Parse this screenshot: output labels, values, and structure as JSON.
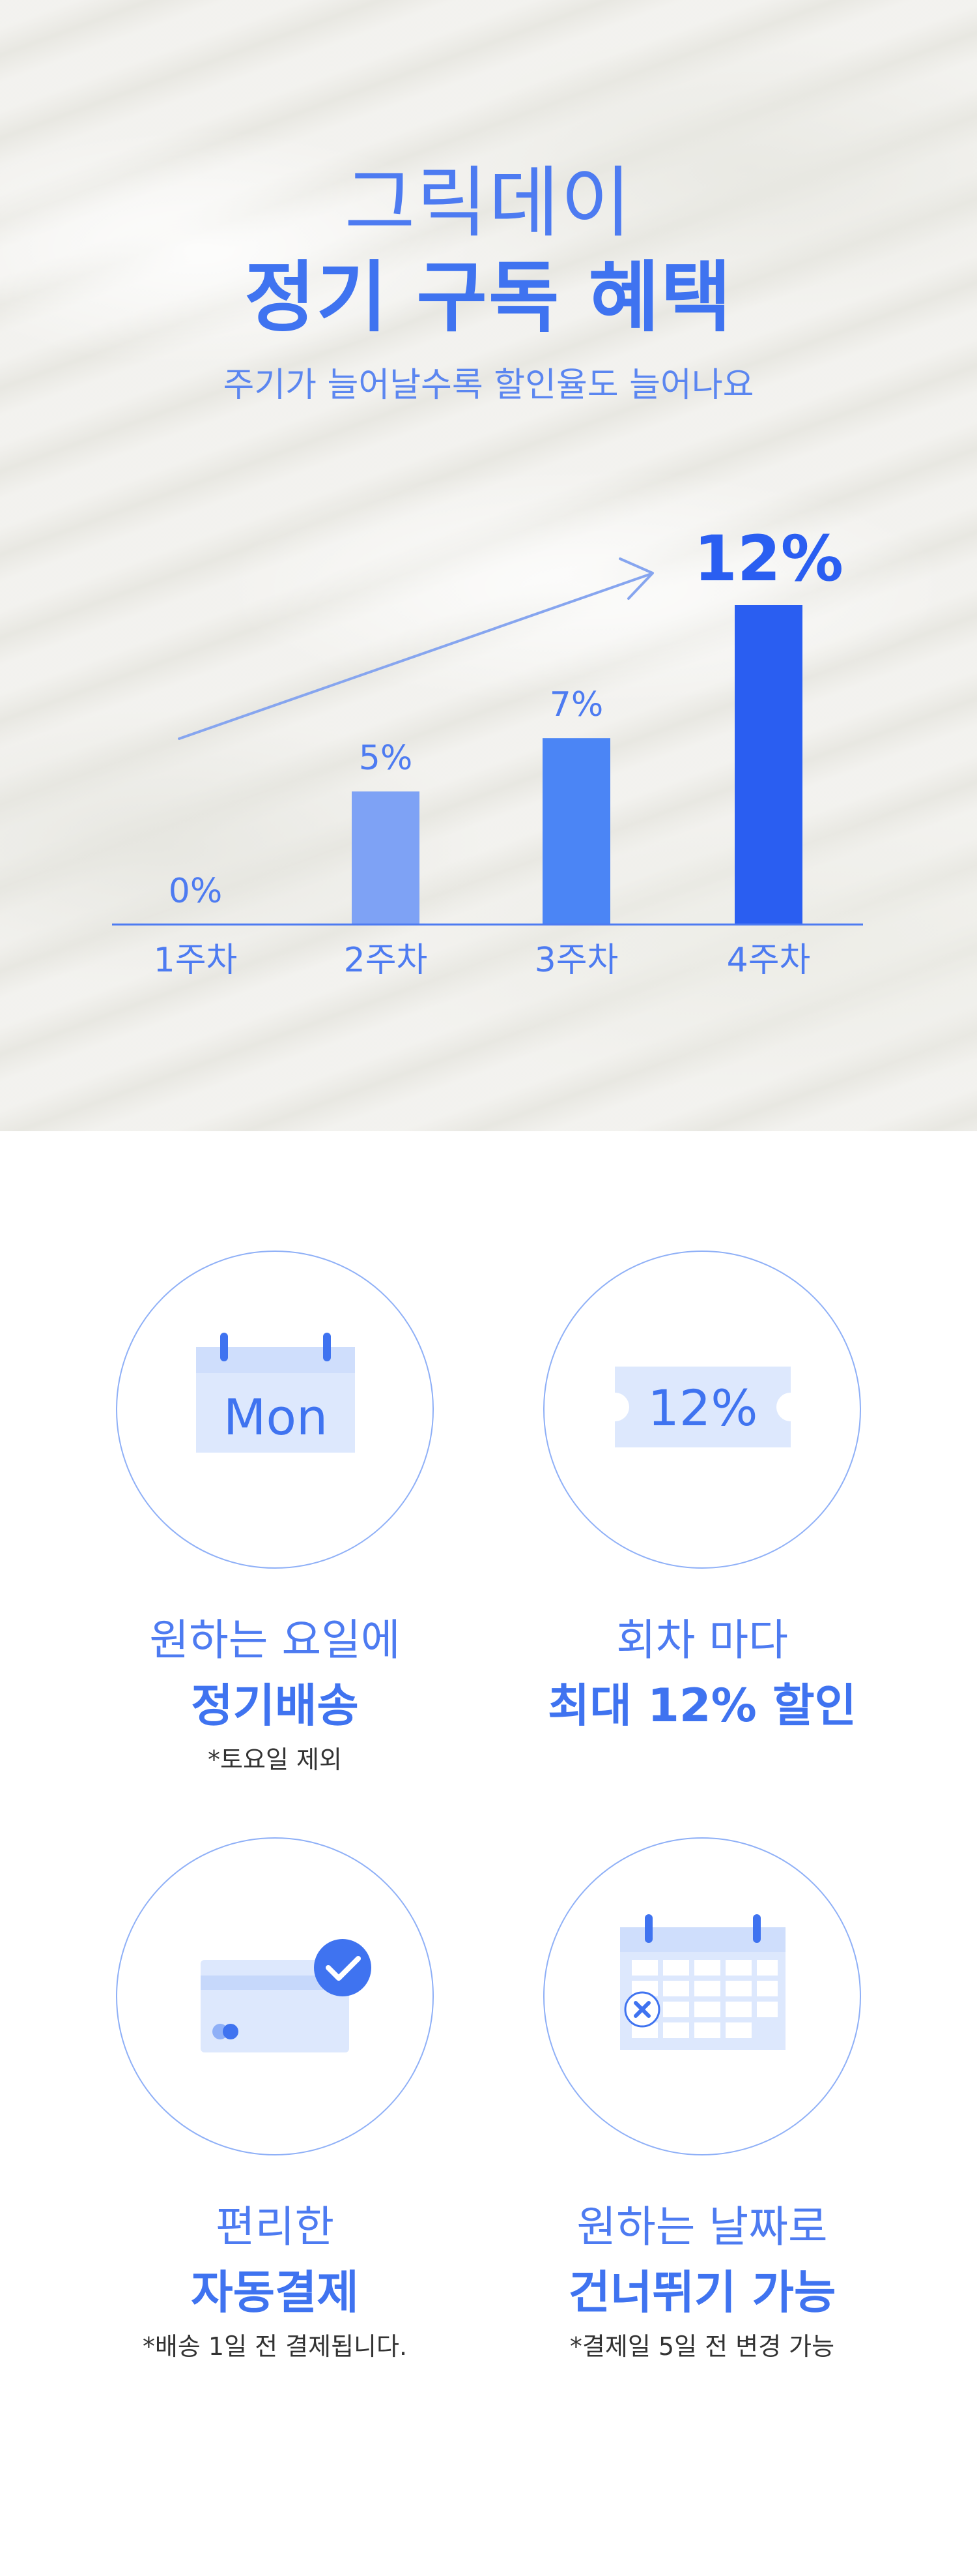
{
  "hero": {
    "brand": "그릭데이",
    "title": "정기 구독 혜택",
    "subtitle": "주기가 늘어날수록 할인율도 늘어나요"
  },
  "chart_data": {
    "type": "bar",
    "categories": [
      "1주차",
      "2주차",
      "3주차",
      "4주차"
    ],
    "values": [
      0,
      5,
      7,
      12
    ],
    "value_labels": [
      "0%",
      "5%",
      "7%",
      "12%"
    ],
    "ylim": [
      0,
      12
    ],
    "colors": [
      "#8fb0f7",
      "#7ea2f5",
      "#4b85f5",
      "#2a5ef1"
    ]
  },
  "features": [
    {
      "icon": "calendar-mon-icon",
      "icon_text": "Mon",
      "title": "원하는 요일에",
      "strong": "정기배송",
      "note": "*토요일 제외"
    },
    {
      "icon": "coupon-icon",
      "icon_text": "12%",
      "title": "회차 마다",
      "strong": "최대 12% 할인",
      "note": ""
    },
    {
      "icon": "credit-card-check-icon",
      "title": "편리한",
      "strong": "자동결제",
      "note": "*배송 1일 전 결제됩니다."
    },
    {
      "icon": "calendar-skip-icon",
      "title": "원하는 날짜로",
      "strong": "건너뛰기 가능",
      "note": "*결제일 5일 전 변경 가능"
    }
  ],
  "colors": {
    "accent": "#3f73f0",
    "light_accent": "#dde8fd",
    "circle_border": "#8fb0f7"
  }
}
